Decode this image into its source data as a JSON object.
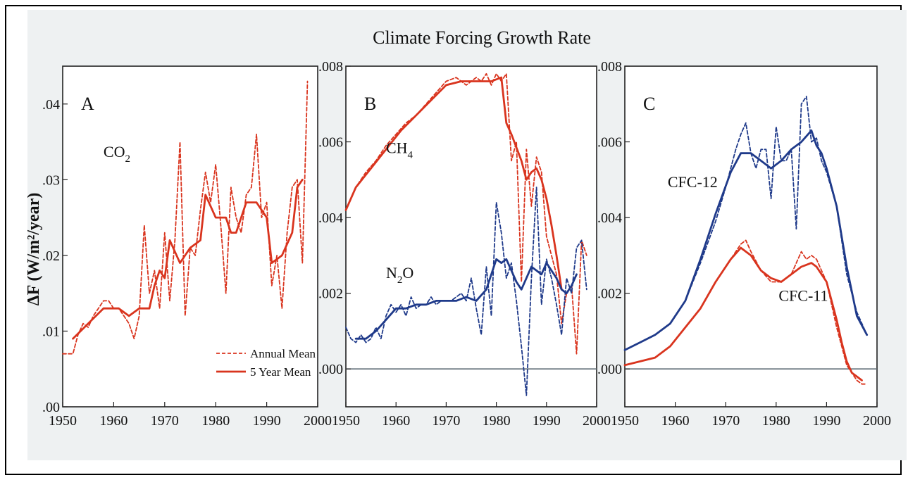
{
  "chart_data": [
    {
      "type": "line",
      "panel_letter": "A",
      "title": "",
      "xlabel": "",
      "ylabel": "ΔF (W/m²/year)",
      "xlim": [
        1950,
        2000
      ],
      "ylim": [
        0,
        0.045
      ],
      "x_ticks": [
        1950,
        1960,
        1970,
        1980,
        1990,
        2000
      ],
      "x_tick_labels": [
        "1950",
        "1960",
        "1970",
        "1980",
        "1990",
        "2000"
      ],
      "y_ticks": [
        0,
        0.01,
        0.02,
        0.03,
        0.04
      ],
      "y_tick_labels": [
        ".00",
        ".01",
        ".02",
        ".03",
        ".04"
      ],
      "annotations": [
        {
          "text": "CO",
          "sub": "2",
          "x": 1958,
          "y": 0.033
        }
      ],
      "legend": {
        "placement": "bottom-right",
        "entries": [
          {
            "label": "Annual Mean",
            "style": "dashed"
          },
          {
            "label": "5 Year Mean",
            "style": "solid"
          }
        ]
      },
      "series": [
        {
          "name": "Annual Mean",
          "color": "#d9341e",
          "style": "dashed",
          "x": [
            1950,
            1952,
            1953,
            1954,
            1955,
            1956,
            1957,
            1958,
            1959,
            1960,
            1961,
            1962,
            1963,
            1964,
            1965,
            1966,
            1967,
            1968,
            1969,
            1970,
            1971,
            1972,
            1973,
            1974,
            1975,
            1976,
            1977,
            1978,
            1979,
            1980,
            1981,
            1982,
            1983,
            1984,
            1985,
            1986,
            1987,
            1988,
            1989,
            1990,
            1991,
            1992,
            1993,
            1994,
            1995,
            1996,
            1997,
            1998
          ],
          "y": [
            0.007,
            0.007,
            0.0095,
            0.011,
            0.0105,
            0.012,
            0.013,
            0.014,
            0.014,
            0.013,
            0.013,
            0.012,
            0.011,
            0.009,
            0.012,
            0.024,
            0.015,
            0.018,
            0.013,
            0.023,
            0.014,
            0.022,
            0.035,
            0.012,
            0.021,
            0.02,
            0.026,
            0.031,
            0.027,
            0.032,
            0.024,
            0.015,
            0.029,
            0.025,
            0.023,
            0.028,
            0.029,
            0.036,
            0.025,
            0.027,
            0.016,
            0.02,
            0.013,
            0.023,
            0.029,
            0.03,
            0.019,
            0.043
          ]
        },
        {
          "name": "5 Year Mean",
          "color": "#d9341e",
          "style": "solid",
          "x": [
            1952,
            1955,
            1958,
            1961,
            1963,
            1965,
            1967,
            1968,
            1969,
            1970,
            1971,
            1973,
            1975,
            1977,
            1978,
            1980,
            1982,
            1983,
            1984,
            1986,
            1988,
            1990,
            1991,
            1993,
            1995,
            1996,
            1997
          ],
          "y": [
            0.009,
            0.011,
            0.013,
            0.013,
            0.012,
            0.013,
            0.013,
            0.016,
            0.018,
            0.017,
            0.022,
            0.019,
            0.021,
            0.022,
            0.028,
            0.025,
            0.025,
            0.023,
            0.023,
            0.027,
            0.027,
            0.025,
            0.019,
            0.02,
            0.023,
            0.029,
            0.03
          ]
        }
      ]
    },
    {
      "type": "line",
      "panel_letter": "B",
      "title": "",
      "xlabel": "",
      "ylabel": "",
      "xlim": [
        1950,
        2000
      ],
      "ylim": [
        -0.001,
        0.008
      ],
      "x_ticks": [
        1950,
        1960,
        1970,
        1980,
        1990,
        2000
      ],
      "x_tick_labels": [
        "1950",
        "1960",
        "1970",
        "1980",
        "1990",
        "2000"
      ],
      "y_ticks": [
        0,
        0.002,
        0.004,
        0.006,
        0.008
      ],
      "y_tick_labels": [
        ".000",
        ".002",
        ".004",
        ".006",
        ".008"
      ],
      "annotations": [
        {
          "text": "CH",
          "sub": "4",
          "x": 1958,
          "y": 0.0057
        },
        {
          "text": "N",
          "sub": "2",
          "suffix": "O",
          "x": 1958,
          "y": 0.0024
        }
      ],
      "series": [
        {
          "name": "CH4 Annual Mean",
          "color": "#d9341e",
          "style": "dashed",
          "x": [
            1950,
            1952,
            1954,
            1956,
            1958,
            1960,
            1962,
            1964,
            1966,
            1968,
            1970,
            1972,
            1974,
            1976,
            1977,
            1978,
            1979,
            1980,
            1981,
            1982,
            1983,
            1984,
            1985,
            1986,
            1987,
            1988,
            1989,
            1990,
            1991,
            1992,
            1993,
            1994,
            1995,
            1996,
            1997,
            1998
          ],
          "y": [
            0.0042,
            0.0048,
            0.0052,
            0.0055,
            0.0059,
            0.0062,
            0.0065,
            0.0067,
            0.007,
            0.0073,
            0.0076,
            0.0077,
            0.0075,
            0.0077,
            0.0076,
            0.0078,
            0.0075,
            0.0078,
            0.0076,
            0.0078,
            0.0055,
            0.006,
            0.0023,
            0.0058,
            0.0043,
            0.0056,
            0.0052,
            0.0035,
            0.003,
            0.0025,
            0.0012,
            0.002,
            0.0022,
            0.0004,
            0.0034,
            0.003
          ]
        },
        {
          "name": "CH4 5 Year Mean",
          "color": "#d9341e",
          "style": "solid",
          "x": [
            1950,
            1952,
            1955,
            1958,
            1961,
            1964,
            1967,
            1970,
            1973,
            1976,
            1979,
            1981,
            1982,
            1983,
            1985,
            1986,
            1987,
            1988,
            1989,
            1990,
            1991,
            1992,
            1993
          ],
          "y": [
            0.0042,
            0.0048,
            0.0053,
            0.0058,
            0.0063,
            0.0067,
            0.0071,
            0.0075,
            0.0076,
            0.0076,
            0.0076,
            0.0077,
            0.0065,
            0.0062,
            0.0055,
            0.005,
            0.0052,
            0.0053,
            0.005,
            0.0045,
            0.0038,
            0.003,
            0.0021
          ]
        },
        {
          "name": "N2O Annual Mean",
          "color": "#1f3a8a",
          "style": "dashed",
          "x": [
            1950,
            1951,
            1952,
            1953,
            1954,
            1955,
            1956,
            1957,
            1958,
            1959,
            1960,
            1961,
            1962,
            1963,
            1964,
            1965,
            1966,
            1967,
            1968,
            1969,
            1970,
            1971,
            1972,
            1973,
            1974,
            1975,
            1976,
            1977,
            1978,
            1979,
            1980,
            1981,
            1982,
            1983,
            1984,
            1985,
            1986,
            1987,
            1988,
            1989,
            1990,
            1991,
            1992,
            1993,
            1994,
            1995,
            1996,
            1997,
            1998
          ],
          "y": [
            0.0011,
            0.0008,
            0.0007,
            0.0009,
            0.0007,
            0.0008,
            0.0011,
            0.0008,
            0.0014,
            0.0017,
            0.0015,
            0.0017,
            0.0014,
            0.0019,
            0.0016,
            0.0017,
            0.0017,
            0.0019,
            0.0017,
            0.0018,
            0.0018,
            0.0018,
            0.0019,
            0.002,
            0.0018,
            0.0024,
            0.0016,
            0.0009,
            0.0027,
            0.0014,
            0.0044,
            0.0036,
            0.0024,
            0.0028,
            0.0018,
            0.0006,
            -0.0007,
            0.0024,
            0.0048,
            0.0017,
            0.0029,
            0.0024,
            0.0017,
            0.0009,
            0.0024,
            0.002,
            0.0032,
            0.0034,
            0.0021
          ]
        },
        {
          "name": "N2O 5 Year Mean",
          "color": "#1f3a8a",
          "style": "solid",
          "x": [
            1952,
            1954,
            1956,
            1958,
            1960,
            1962,
            1964,
            1966,
            1968,
            1970,
            1972,
            1974,
            1976,
            1978,
            1979,
            1980,
            1981,
            1982,
            1983,
            1984,
            1985,
            1986,
            1987,
            1988,
            1989,
            1990,
            1991,
            1992,
            1993,
            1994,
            1995,
            1996
          ],
          "y": [
            0.0008,
            0.0008,
            0.001,
            0.0013,
            0.0016,
            0.0016,
            0.0017,
            0.0017,
            0.0018,
            0.0018,
            0.0018,
            0.0019,
            0.0018,
            0.0021,
            0.0025,
            0.0029,
            0.0028,
            0.0029,
            0.0026,
            0.0023,
            0.0021,
            0.0024,
            0.0027,
            0.0026,
            0.0025,
            0.0028,
            0.0026,
            0.0024,
            0.0021,
            0.002,
            0.0022,
            0.0025
          ]
        }
      ]
    },
    {
      "type": "line",
      "panel_letter": "C",
      "title": "",
      "xlabel": "",
      "ylabel": "",
      "xlim": [
        1950,
        2000
      ],
      "ylim": [
        -0.001,
        0.008
      ],
      "x_ticks": [
        1950,
        1960,
        1970,
        1980,
        1990,
        2000
      ],
      "x_tick_labels": [
        "1950",
        "1960",
        "1970",
        "1980",
        "1990",
        "2000"
      ],
      "y_ticks": [
        0,
        0.002,
        0.004,
        0.006,
        0.008
      ],
      "y_tick_labels": [
        ".000",
        ".002",
        ".004",
        ".006",
        ".008"
      ],
      "annotations": [
        {
          "text": "CFC-12",
          "x": 1958.5,
          "y": 0.0048
        },
        {
          "text": "CFC-11",
          "x": 1980.5,
          "y": 0.0018
        }
      ],
      "series": [
        {
          "name": "CFC-12 Annual Mean",
          "color": "#1f3a8a",
          "style": "dashed",
          "x": [
            1950,
            1953,
            1956,
            1959,
            1962,
            1965,
            1968,
            1970,
            1972,
            1973,
            1974,
            1975,
            1976,
            1977,
            1978,
            1979,
            1980,
            1981,
            1982,
            1983,
            1984,
            1985,
            1986,
            1987,
            1988,
            1989,
            1990,
            1992,
            1994,
            1996,
            1998
          ],
          "y": [
            0.0005,
            0.0007,
            0.0009,
            0.0012,
            0.0018,
            0.0028,
            0.0039,
            0.0048,
            0.0058,
            0.0062,
            0.0065,
            0.0057,
            0.0053,
            0.0058,
            0.0058,
            0.0045,
            0.0064,
            0.0055,
            0.0055,
            0.0058,
            0.0037,
            0.007,
            0.0072,
            0.006,
            0.0061,
            0.0055,
            0.0052,
            0.0043,
            0.0025,
            0.0015,
            0.0009
          ]
        },
        {
          "name": "CFC-12 5 Year Mean",
          "color": "#1f3a8a",
          "style": "solid",
          "x": [
            1950,
            1953,
            1956,
            1959,
            1962,
            1965,
            1968,
            1971,
            1973,
            1975,
            1977,
            1979,
            1981,
            1983,
            1985,
            1987,
            1988,
            1989,
            1990,
            1992,
            1994,
            1996,
            1998
          ],
          "y": [
            0.0005,
            0.0007,
            0.0009,
            0.0012,
            0.0018,
            0.0029,
            0.0041,
            0.0052,
            0.0057,
            0.0057,
            0.0055,
            0.0053,
            0.0055,
            0.0058,
            0.006,
            0.0063,
            0.0059,
            0.0057,
            0.0053,
            0.0043,
            0.0027,
            0.0014,
            0.0009
          ]
        },
        {
          "name": "CFC-11 Annual Mean",
          "color": "#d9341e",
          "style": "dashed",
          "x": [
            1950,
            1953,
            1956,
            1959,
            1962,
            1965,
            1968,
            1971,
            1973,
            1974,
            1975,
            1977,
            1979,
            1981,
            1983,
            1985,
            1986,
            1987,
            1988,
            1990,
            1992,
            1993,
            1994,
            1995,
            1996,
            1997,
            1998
          ],
          "y": [
            0.0001,
            0.0002,
            0.0003,
            0.0006,
            0.0011,
            0.0016,
            0.0023,
            0.0029,
            0.0033,
            0.0034,
            0.0031,
            0.0026,
            0.0023,
            0.0023,
            0.0025,
            0.0031,
            0.0029,
            0.003,
            0.0029,
            0.0023,
            0.0011,
            0.0006,
            0.0001,
            -0.0001,
            -0.0003,
            -0.0004,
            -0.0004
          ]
        },
        {
          "name": "CFC-11 5 Year Mean",
          "color": "#d9341e",
          "style": "solid",
          "x": [
            1950,
            1953,
            1956,
            1959,
            1962,
            1965,
            1968,
            1971,
            1973,
            1975,
            1977,
            1979,
            1981,
            1983,
            1985,
            1987,
            1988,
            1990,
            1992,
            1993,
            1994,
            1995,
            1996,
            1997
          ],
          "y": [
            0.0001,
            0.0002,
            0.0003,
            0.0006,
            0.0011,
            0.0016,
            0.0023,
            0.0029,
            0.0032,
            0.003,
            0.0026,
            0.0024,
            0.0023,
            0.0025,
            0.0027,
            0.0028,
            0.0027,
            0.0023,
            0.0013,
            0.0007,
            0.0002,
            -0.0001,
            -0.0002,
            -0.0003
          ]
        }
      ]
    }
  ],
  "figure": {
    "title": "Climate Forcing Growth Rate",
    "ylabel": "ΔF (W/m²/year)",
    "legend_annual": "Annual Mean",
    "legend_five_year": "5 Year Mean",
    "colors": {
      "red": "#d9341e",
      "blue": "#1f3a8a",
      "zero_line": "#5e6b75"
    }
  }
}
